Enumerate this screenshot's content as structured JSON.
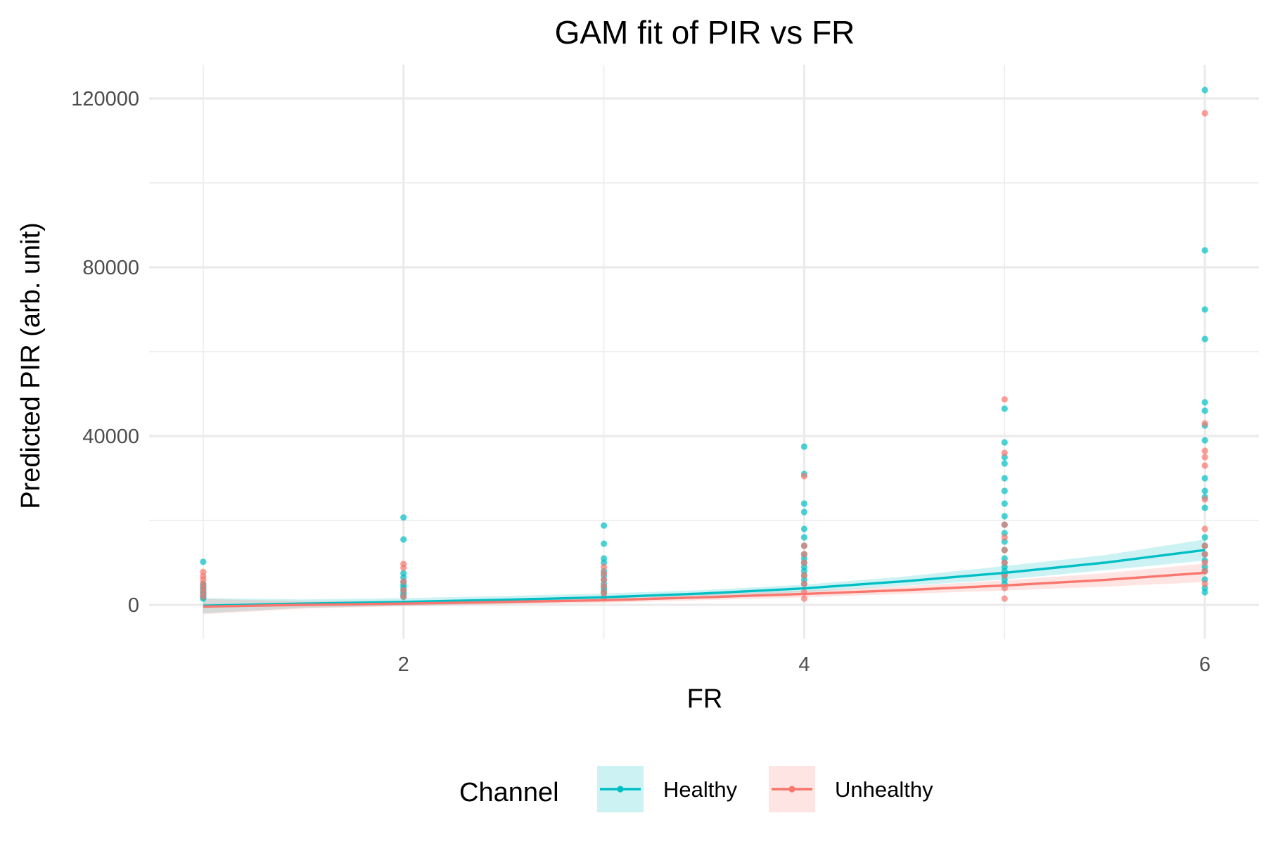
{
  "chart_data": {
    "type": "scatter",
    "title": "GAM fit of PIR vs FR",
    "xlabel": "FR",
    "ylabel": "Predicted PIR (arb. unit)",
    "xlim": [
      0.73,
      6.27
    ],
    "ylim": [
      -8000,
      128000
    ],
    "x_ticks": [
      2,
      4,
      6
    ],
    "y_ticks": [
      0,
      40000,
      80000,
      120000
    ],
    "x_minor": [
      1,
      3,
      5
    ],
    "y_minor": [
      20000,
      60000,
      100000
    ],
    "grid": true,
    "legend": {
      "title": "Channel",
      "position": "bottom"
    },
    "series": [
      {
        "name": "Healthy",
        "color": "#00BFC4",
        "fit_x": [
          1,
          1.5,
          2,
          2.5,
          3,
          3.5,
          4,
          4.5,
          5,
          5.5,
          6
        ],
        "fit_y": [
          -200,
          300,
          700,
          1200,
          1800,
          2700,
          3900,
          5600,
          7600,
          10000,
          13000
        ],
        "ci_lower": [
          -2000,
          -700,
          -200,
          300,
          900,
          1900,
          3000,
          4500,
          6000,
          8200,
          10500
        ],
        "ci_upper": [
          1600,
          1300,
          1600,
          2100,
          2700,
          3500,
          4800,
          6700,
          9200,
          11800,
          15500
        ],
        "points_x": [
          1,
          1,
          1,
          1,
          1,
          1,
          1,
          1,
          1,
          1,
          2,
          2,
          2,
          2,
          2,
          2,
          2,
          2,
          2,
          2,
          2,
          3,
          3,
          3,
          3,
          3,
          3,
          3,
          3,
          3,
          3,
          3,
          4,
          4,
          4,
          4,
          4,
          4,
          4,
          4,
          4,
          4,
          4,
          4,
          4,
          4,
          4,
          5,
          5,
          5,
          5,
          5,
          5,
          5,
          5,
          5,
          5,
          5,
          5,
          5,
          5,
          5,
          5,
          5,
          5,
          5,
          6,
          6,
          6,
          6,
          6,
          6,
          6,
          6,
          6,
          6,
          6,
          6,
          6,
          6,
          6,
          6,
          6,
          6,
          6,
          6,
          6
        ],
        "points_y": [
          10200,
          5000,
          4500,
          4000,
          3500,
          3000,
          2600,
          2200,
          1800,
          1500,
          20700,
          15500,
          7500,
          6500,
          5500,
          4800,
          4200,
          3600,
          3000,
          2400,
          1900,
          18800,
          14500,
          11000,
          10000,
          8000,
          7000,
          6000,
          5000,
          4200,
          3500,
          2800,
          37500,
          31000,
          24000,
          22000,
          18000,
          16000,
          14000,
          12000,
          11000,
          10000,
          9000,
          8000,
          7000,
          6000,
          5000,
          46500,
          38500,
          35000,
          33500,
          30000,
          27000,
          24000,
          21000,
          19000,
          17000,
          15000,
          13000,
          11000,
          10000,
          9000,
          8000,
          7000,
          6000,
          5000,
          122000,
          84000,
          70000,
          63000,
          48000,
          46000,
          42500,
          39000,
          30000,
          27000,
          25500,
          23000,
          16000,
          14000,
          12000,
          10500,
          9000,
          8000,
          6000,
          4000,
          3000
        ]
      },
      {
        "name": "Unhealthy",
        "color": "#F8766D",
        "fit_x": [
          1,
          1.5,
          2,
          2.5,
          3,
          3.5,
          4,
          4.5,
          5,
          5.5,
          6
        ],
        "fit_y": [
          -400,
          0,
          300,
          700,
          1100,
          1800,
          2600,
          3500,
          4600,
          5900,
          7600
        ],
        "ci_lower": [
          -2200,
          -900,
          -300,
          100,
          500,
          1100,
          1800,
          2600,
          3400,
          4300,
          5400
        ],
        "ci_upper": [
          1400,
          900,
          900,
          1300,
          1700,
          2500,
          3400,
          4400,
          5800,
          7500,
          9800
        ],
        "points_x": [
          1,
          1,
          1,
          1,
          1,
          1,
          1,
          2,
          2,
          2,
          2,
          2,
          3,
          3,
          3,
          3,
          3,
          3,
          4,
          4,
          4,
          4,
          4,
          4,
          4,
          4,
          5,
          5,
          5,
          5,
          5,
          5,
          5,
          5,
          5,
          6,
          6,
          6,
          6,
          6,
          6,
          6,
          6,
          6,
          6,
          6,
          6
        ],
        "points_y": [
          7800,
          6800,
          6000,
          5000,
          4000,
          3000,
          2000,
          9700,
          8800,
          5500,
          3500,
          2000,
          9000,
          7500,
          6000,
          4500,
          3000,
          1800,
          30500,
          14000,
          12000,
          10000,
          7000,
          5000,
          3000,
          1500,
          48700,
          36000,
          19000,
          16000,
          13000,
          10000,
          7000,
          4000,
          1500,
          116500,
          43000,
          36500,
          35000,
          33000,
          25000,
          18000,
          14000,
          12000,
          10000,
          8000,
          5000
        ]
      }
    ]
  }
}
